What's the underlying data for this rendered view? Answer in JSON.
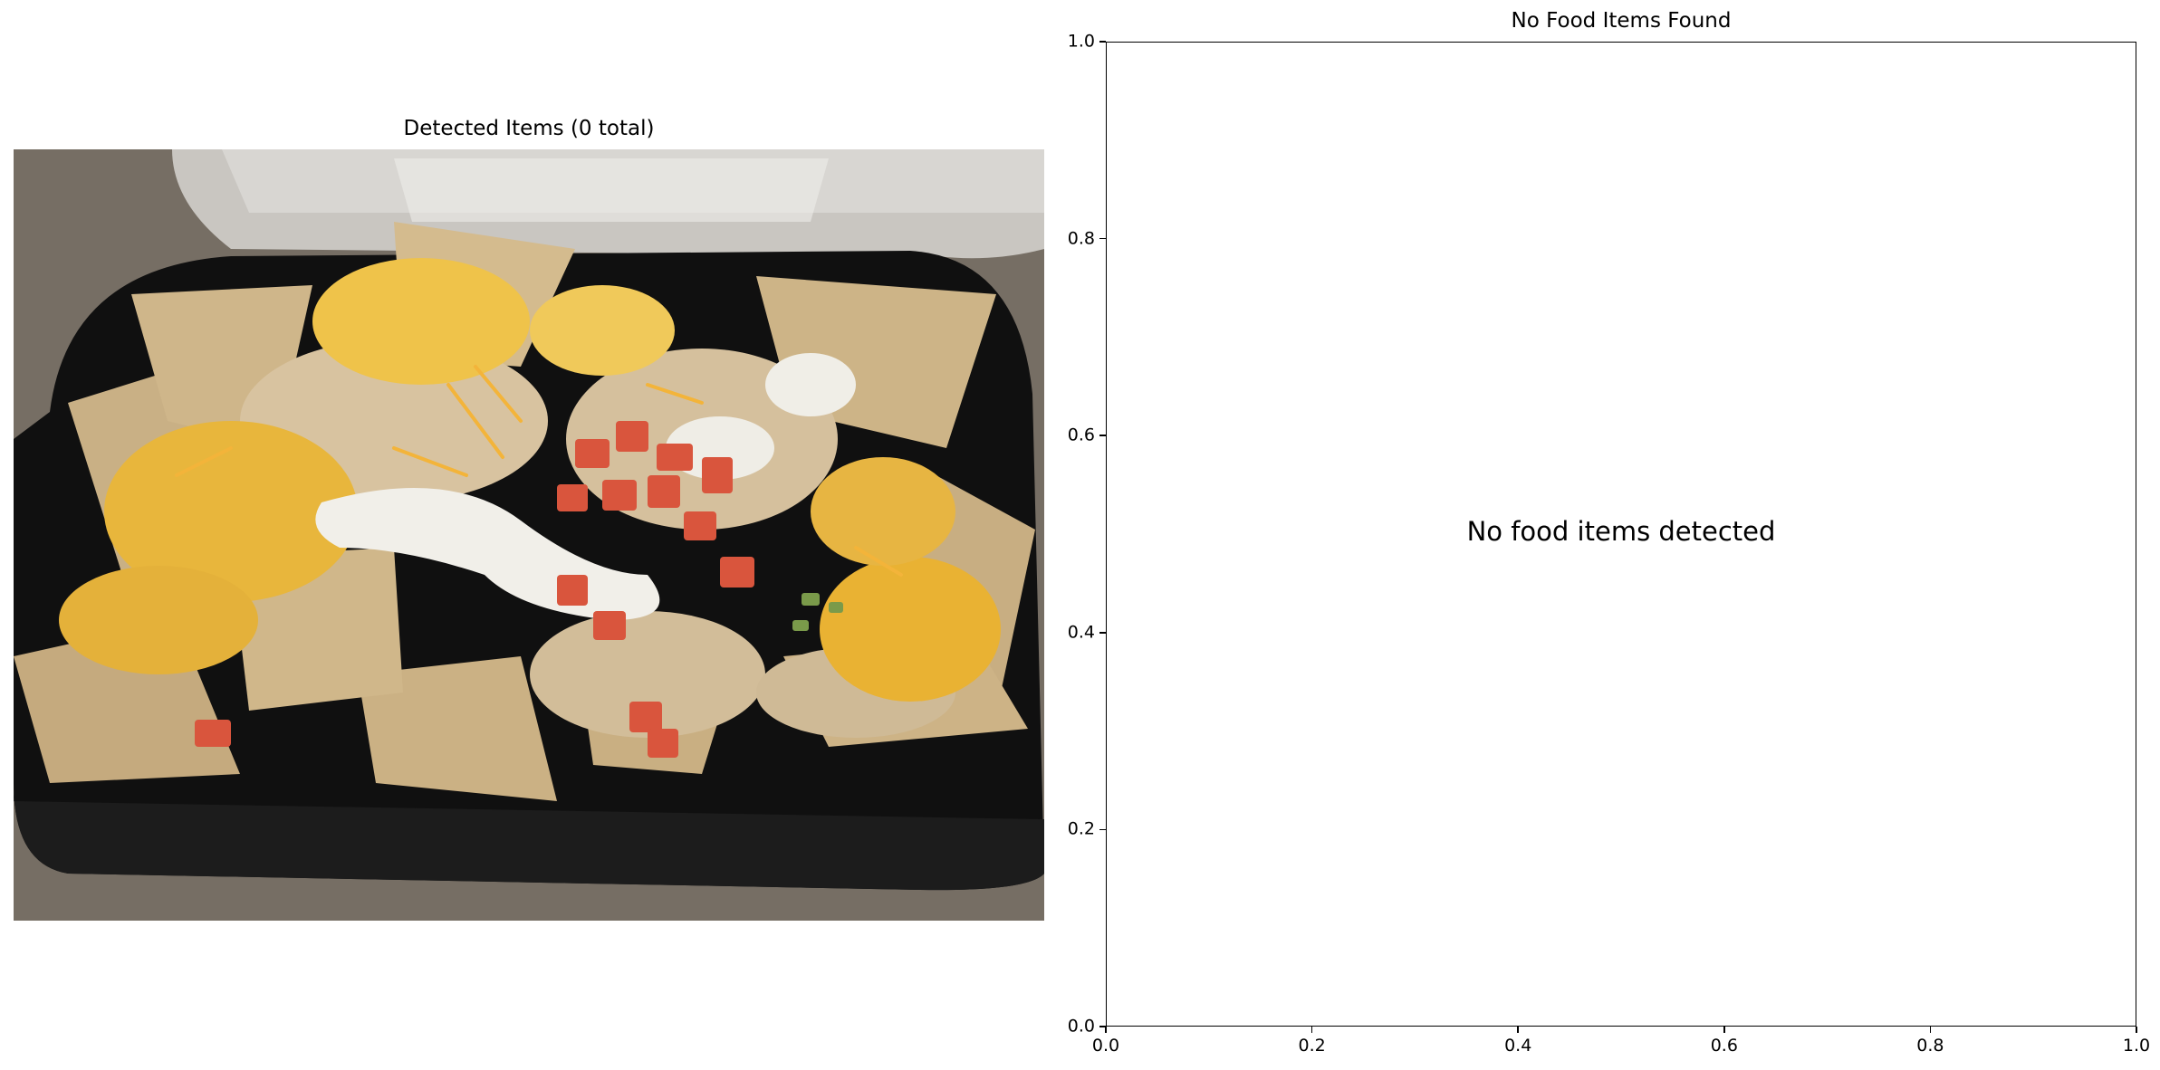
{
  "panels": {
    "left": {
      "title": "Detected Items (0 total)"
    },
    "right": {
      "title": "No Food Items Found",
      "message": "No food items detected"
    }
  },
  "chart_data": [
    {
      "type": "image",
      "title": "Detected Items (0 total)",
      "content": "photo of nachos in a black takeout container",
      "detections": []
    },
    {
      "type": "scatter",
      "title": "No Food Items Found",
      "xlim": [
        0.0,
        1.0
      ],
      "ylim": [
        0.0,
        1.0
      ],
      "x_ticks": [
        "0.0",
        "0.2",
        "0.4",
        "0.6",
        "0.8",
        "1.0"
      ],
      "y_ticks": [
        "0.0",
        "0.2",
        "0.4",
        "0.6",
        "0.8",
        "1.0"
      ],
      "annotation": "No food items detected",
      "grid": false,
      "series": []
    }
  ],
  "colors": {
    "axis": "#000000",
    "background": "#ffffff"
  }
}
